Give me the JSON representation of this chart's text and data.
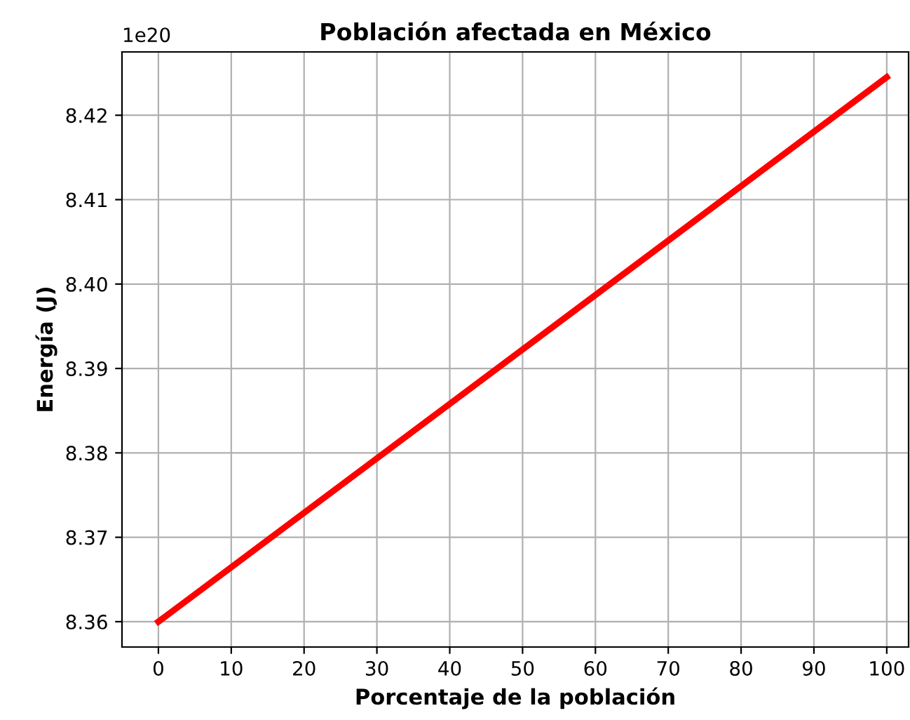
{
  "chart_data": {
    "type": "line",
    "title": "Población afectada en México",
    "xlabel": "Porcentaje de la población",
    "ylabel": "Energía (J)",
    "annotations": [
      "1e20"
    ],
    "x": [
      0,
      100
    ],
    "series": [
      {
        "color": "#ff0000",
        "values": [
          8.36,
          8.4245
        ]
      }
    ],
    "xlim": [
      -5,
      103
    ],
    "xticks": [
      0,
      10,
      20,
      30,
      40,
      50,
      60,
      70,
      80,
      90,
      100
    ],
    "ylim": [
      8.357,
      8.4275
    ],
    "yticks": [
      {
        "value": 8.36,
        "label": "8.36"
      },
      {
        "value": 8.37,
        "label": "8.37"
      },
      {
        "value": 8.38,
        "label": "8.38"
      },
      {
        "value": 8.39,
        "label": "8.39"
      },
      {
        "value": 8.4,
        "label": "8.40"
      },
      {
        "value": 8.41,
        "label": "8.41"
      },
      {
        "value": 8.42,
        "label": "8.42"
      }
    ],
    "grid": true,
    "legend": false,
    "marker": "none",
    "line_style": "solid"
  }
}
